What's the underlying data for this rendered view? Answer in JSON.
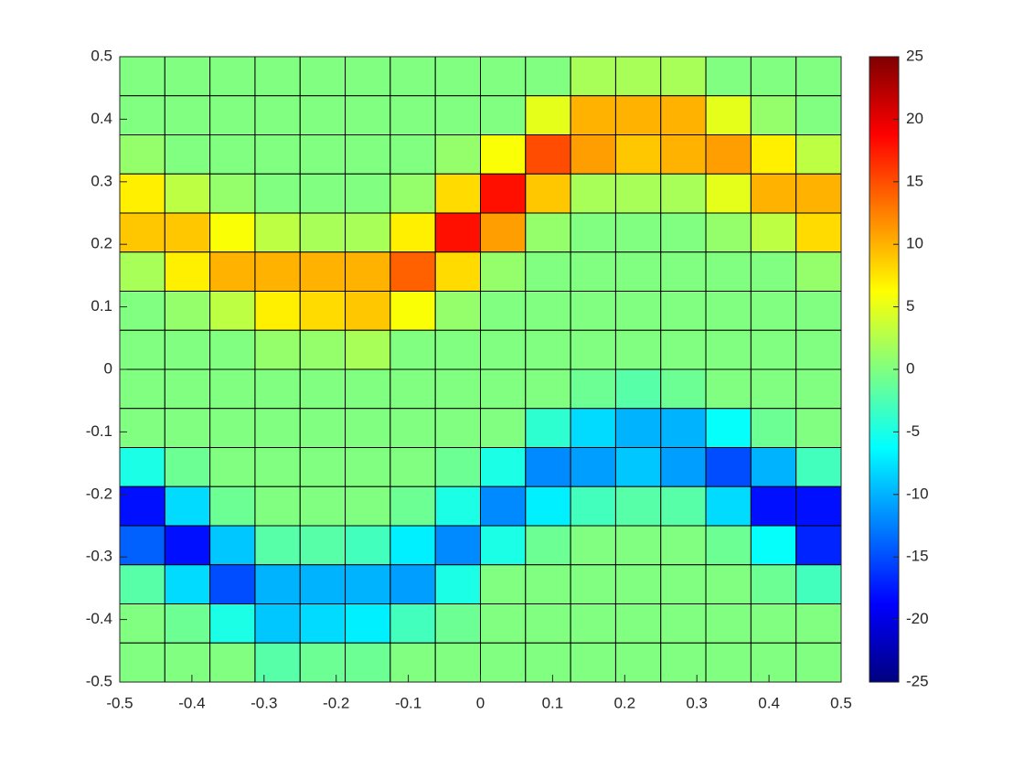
{
  "chart_data": {
    "type": "heatmap",
    "colormap": "jet",
    "xlim": [
      -0.5,
      0.5
    ],
    "ylim": [
      -0.5,
      0.5
    ],
    "xticks": [
      -0.5,
      -0.4,
      -0.3,
      -0.2,
      -0.1,
      0,
      0.1,
      0.2,
      0.3,
      0.4,
      0.5
    ],
    "yticks": [
      -0.5,
      -0.4,
      -0.3,
      -0.2,
      -0.1,
      0,
      0.1,
      0.2,
      0.3,
      0.4,
      0.5
    ],
    "clim": [
      -25,
      25
    ],
    "cticks": [
      -25,
      -20,
      -15,
      -10,
      -5,
      0,
      5,
      10,
      15,
      20,
      25
    ],
    "z": [
      [
        0,
        0,
        0,
        0,
        0,
        0,
        0,
        0,
        0,
        0,
        2,
        2,
        2,
        0,
        0,
        0
      ],
      [
        0,
        0,
        0,
        0,
        0,
        0,
        0,
        0,
        0,
        5,
        10,
        10,
        10,
        5,
        1,
        0
      ],
      [
        1,
        0,
        0,
        0,
        0,
        0,
        0,
        1,
        6,
        15,
        11,
        9,
        10,
        11,
        7,
        3
      ],
      [
        7,
        3,
        1,
        0,
        0,
        0,
        1,
        8,
        18,
        9,
        2,
        2,
        2,
        5,
        10,
        10
      ],
      [
        9,
        9,
        6,
        3,
        2,
        2,
        7,
        18,
        11,
        1,
        0,
        0,
        0,
        1,
        3,
        8
      ],
      [
        2,
        7,
        10,
        10,
        10,
        10,
        14,
        8,
        1,
        0,
        0,
        0,
        0,
        0,
        0,
        1
      ],
      [
        0,
        1,
        3,
        7,
        8,
        9,
        6,
        1,
        0,
        0,
        0,
        0,
        0,
        0,
        0,
        0
      ],
      [
        0,
        0,
        0,
        1,
        1,
        2,
        0,
        0,
        0,
        0,
        0,
        0,
        0,
        0,
        0,
        0
      ],
      [
        0,
        0,
        0,
        0,
        0,
        0,
        0,
        0,
        0,
        0,
        -1,
        -2,
        -1,
        0,
        0,
        0
      ],
      [
        0,
        0,
        0,
        0,
        0,
        0,
        0,
        0,
        0,
        -4,
        -8,
        -10,
        -10,
        -6,
        -1,
        0
      ],
      [
        -5,
        -1,
        0,
        0,
        0,
        0,
        0,
        -1,
        -5,
        -12,
        -11,
        -9,
        -11,
        -15,
        -10,
        -3
      ],
      [
        -18,
        -8,
        -1,
        0,
        0,
        0,
        -1,
        -5,
        -12,
        -7,
        -3,
        -2,
        -2,
        -8,
        -18,
        -18
      ],
      [
        -14,
        -18,
        -9,
        -2,
        -2,
        -3,
        -7,
        -12,
        -5,
        -1,
        0,
        0,
        0,
        -1,
        -6,
        -17
      ],
      [
        -2,
        -8,
        -15,
        -10,
        -10,
        -10,
        -11,
        -5,
        0,
        0,
        0,
        0,
        0,
        0,
        -1,
        -3
      ],
      [
        0,
        -1,
        -5,
        -9,
        -8,
        -7,
        -3,
        -1,
        0,
        0,
        0,
        0,
        0,
        0,
        0,
        0
      ],
      [
        0,
        0,
        0,
        -2,
        -1,
        -1,
        0,
        0,
        0,
        0,
        0,
        0,
        0,
        0,
        0,
        0
      ]
    ]
  }
}
